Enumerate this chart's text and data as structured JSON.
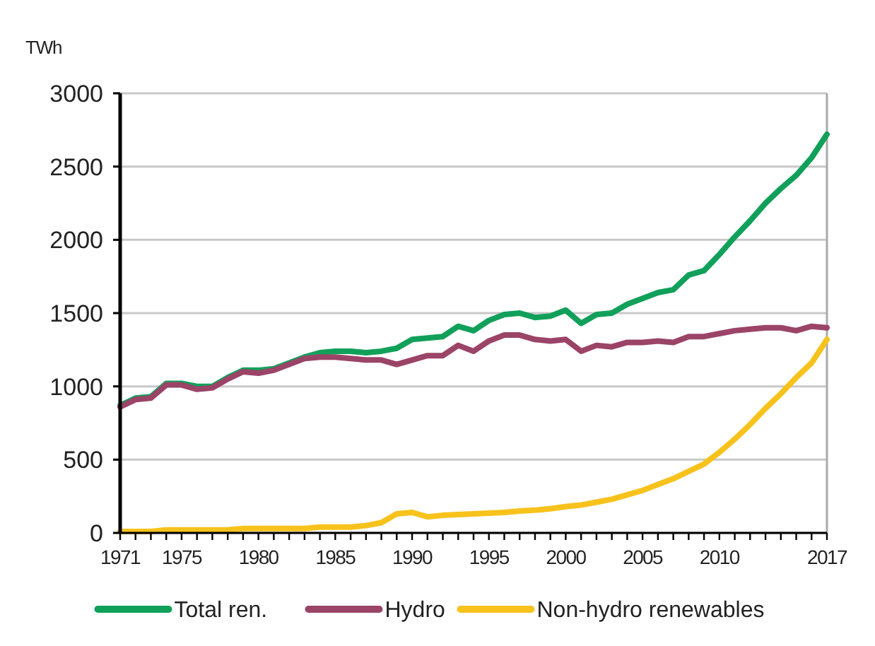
{
  "chart_data": {
    "type": "line",
    "ylabel": "TWh",
    "x": [
      1971,
      1972,
      1973,
      1974,
      1975,
      1976,
      1977,
      1978,
      1979,
      1980,
      1981,
      1982,
      1983,
      1984,
      1985,
      1986,
      1987,
      1988,
      1989,
      1990,
      1991,
      1992,
      1993,
      1994,
      1995,
      1996,
      1997,
      1998,
      1999,
      2000,
      2001,
      2002,
      2003,
      2004,
      2005,
      2006,
      2007,
      2008,
      2009,
      2010,
      2011,
      2012,
      2013,
      2014,
      2015,
      2016,
      2017
    ],
    "series": [
      {
        "name": "Total ren.",
        "color": "#11a05a",
        "values": [
          870,
          920,
          930,
          1020,
          1020,
          1000,
          1000,
          1060,
          1110,
          1110,
          1120,
          1160,
          1200,
          1230,
          1240,
          1240,
          1230,
          1240,
          1260,
          1320,
          1330,
          1340,
          1410,
          1380,
          1450,
          1490,
          1500,
          1470,
          1480,
          1520,
          1430,
          1490,
          1500,
          1560,
          1600,
          1640,
          1660,
          1760,
          1790,
          1900,
          2020,
          2130,
          2250,
          2350,
          2440,
          2560,
          2720
        ]
      },
      {
        "name": "Hydro",
        "color": "#9b4468",
        "values": [
          860,
          910,
          920,
          1010,
          1010,
          980,
          990,
          1050,
          1100,
          1090,
          1110,
          1150,
          1190,
          1200,
          1200,
          1190,
          1180,
          1180,
          1150,
          1180,
          1210,
          1210,
          1280,
          1240,
          1310,
          1350,
          1350,
          1320,
          1310,
          1320,
          1240,
          1280,
          1270,
          1300,
          1300,
          1310,
          1300,
          1340,
          1340,
          1360,
          1380,
          1390,
          1400,
          1400,
          1380,
          1410,
          1400
        ]
      },
      {
        "name": "Non-hydro renewables",
        "color": "#f8c21c",
        "values": [
          10,
          10,
          10,
          20,
          20,
          20,
          20,
          20,
          30,
          30,
          30,
          30,
          30,
          40,
          40,
          40,
          50,
          70,
          130,
          140,
          110,
          120,
          125,
          130,
          135,
          140,
          150,
          155,
          165,
          180,
          190,
          210,
          230,
          260,
          290,
          330,
          370,
          420,
          470,
          550,
          640,
          740,
          850,
          950,
          1060,
          1160,
          1320
        ]
      }
    ],
    "xlim": [
      1971,
      2017
    ],
    "xticks": [
      1971,
      {
        "value": 1972,
        "label": null
      },
      {
        "value": 1973,
        "label": null
      },
      {
        "value": 1974,
        "label": null
      },
      1975,
      {
        "value": 1976,
        "label": null
      },
      {
        "value": 1977,
        "label": null
      },
      {
        "value": 1978,
        "label": null
      },
      {
        "value": 1979,
        "label": null
      },
      1980,
      {
        "value": 1981,
        "label": null
      },
      {
        "value": 1982,
        "label": null
      },
      {
        "value": 1983,
        "label": null
      },
      {
        "value": 1984,
        "label": null
      },
      1985,
      {
        "value": 1986,
        "label": null
      },
      {
        "value": 1987,
        "label": null
      },
      {
        "value": 1988,
        "label": null
      },
      {
        "value": 1989,
        "label": null
      },
      1990,
      {
        "value": 1991,
        "label": null
      },
      {
        "value": 1992,
        "label": null
      },
      {
        "value": 1993,
        "label": null
      },
      {
        "value": 1994,
        "label": null
      },
      1995,
      {
        "value": 1996,
        "label": null
      },
      {
        "value": 1997,
        "label": null
      },
      {
        "value": 1998,
        "label": null
      },
      {
        "value": 1999,
        "label": null
      },
      2000,
      {
        "value": 2001,
        "label": null
      },
      {
        "value": 2002,
        "label": null
      },
      {
        "value": 2003,
        "label": null
      },
      {
        "value": 2004,
        "label": null
      },
      2005,
      {
        "value": 2006,
        "label": null
      },
      {
        "value": 2007,
        "label": null
      },
      {
        "value": 2008,
        "label": null
      },
      {
        "value": 2009,
        "label": null
      },
      2010,
      {
        "value": 2011,
        "label": null
      },
      {
        "value": 2012,
        "label": null
      },
      {
        "value": 2013,
        "label": null
      },
      {
        "value": 2014,
        "label": null
      },
      {
        "value": 2015,
        "label": null
      },
      {
        "value": 2016,
        "label": null
      },
      2017
    ],
    "ylim": [
      0,
      3000
    ],
    "yticks": [
      0,
      500,
      1000,
      1500,
      2000,
      2500,
      3000
    ],
    "grid": "y",
    "legend": "bottom",
    "marker": "none",
    "line_style": "solid"
  }
}
